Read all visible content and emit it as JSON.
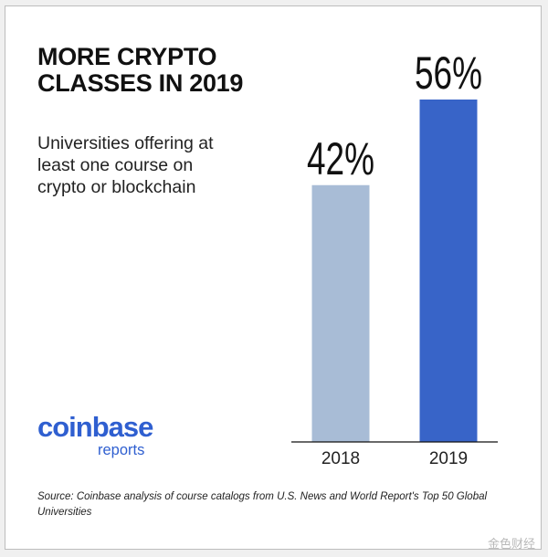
{
  "title": "MORE CRYPTO CLASSES IN 2019",
  "subtitle": "Universities offering at least one course on crypto or blockchain",
  "brand": {
    "name": "coinbase",
    "sub": "reports",
    "color": "#2f5fd0"
  },
  "source": "Source: Coinbase analysis of course catalogs from U.S. News and World Report's Top 50 Global Universities",
  "watermark": "金色财经",
  "chart_data": {
    "type": "bar",
    "categories": [
      "2018",
      "2019"
    ],
    "values": [
      42,
      56
    ],
    "value_labels": [
      "42%",
      "56%"
    ],
    "unit": "%",
    "colors": [
      "#a8bcd6",
      "#3864c8"
    ],
    "ylim": [
      0,
      60
    ],
    "grid": false,
    "legend": "none"
  }
}
